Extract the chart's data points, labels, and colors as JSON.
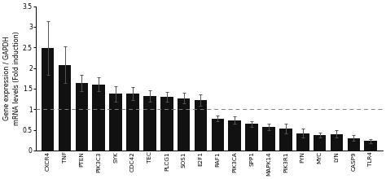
{
  "categories": [
    "CXCR4",
    "TNF",
    "PTEN",
    "PIK3C3",
    "SYK",
    "CDC42",
    "TEC",
    "PLCG1",
    "SOS1",
    "E2F1",
    "RAF1",
    "PIK3CA",
    "SPP1",
    "MAPK14",
    "PIK3R1",
    "FYN",
    "MYC",
    "LYN",
    "CASP9",
    "TLR4"
  ],
  "values": [
    2.48,
    2.08,
    1.63,
    1.6,
    1.37,
    1.38,
    1.32,
    1.3,
    1.27,
    1.22,
    0.77,
    0.73,
    0.64,
    0.57,
    0.53,
    0.42,
    0.38,
    0.4,
    0.3,
    0.23
  ],
  "errors": [
    0.65,
    0.45,
    0.2,
    0.17,
    0.18,
    0.15,
    0.13,
    0.12,
    0.13,
    0.13,
    0.07,
    0.09,
    0.07,
    0.08,
    0.12,
    0.1,
    0.06,
    0.09,
    0.07,
    0.05
  ],
  "bar_color": "#111111",
  "ylabel": "Gene expression / GAPDH\nmRNA levels (Fold induction)",
  "ylim": [
    0,
    3.5
  ],
  "yticks": [
    0,
    0.5,
    1,
    1.5,
    2,
    2.5,
    3,
    3.5
  ],
  "ytick_labels": [
    "0",
    "0.5",
    "1",
    "1.5",
    "2",
    "2.5",
    "3",
    "3.5"
  ],
  "dashed_line_y": 1.0,
  "background_color": "#ffffff",
  "ylabel_fontsize": 5.8,
  "tick_fontsize": 5.5,
  "xlabel_fontsize": 5.2,
  "bar_width": 0.75,
  "ecolor": "#555555",
  "elinewidth": 0.7,
  "capsize": 1.5,
  "capthick": 0.7
}
